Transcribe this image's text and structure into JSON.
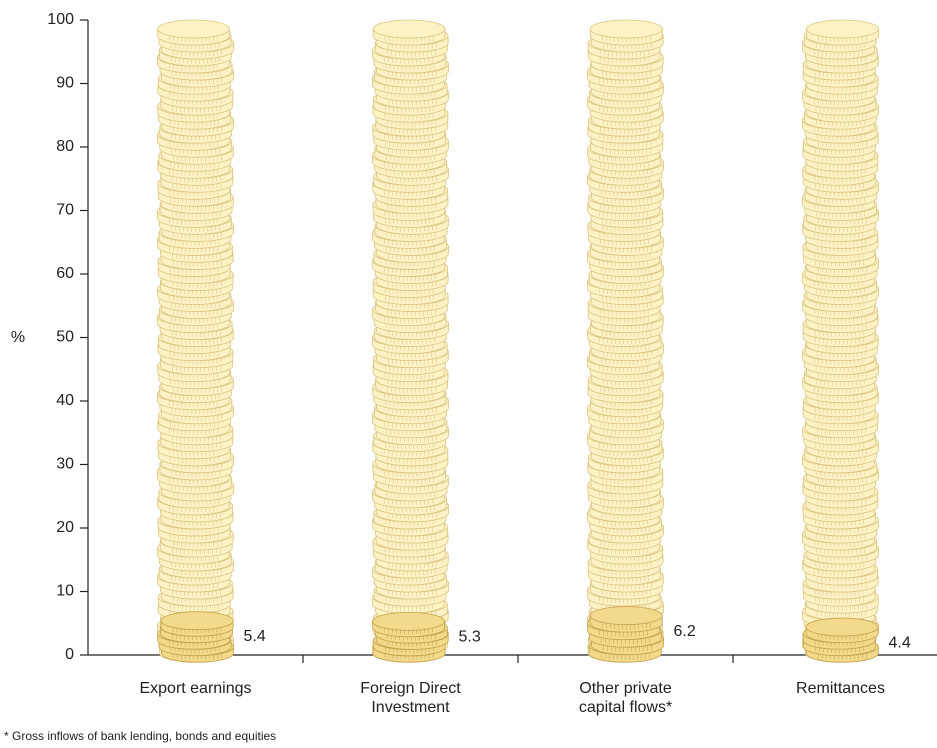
{
  "chart_data": {
    "type": "coin-stack",
    "y_label": "%",
    "categories": [
      "Export earnings",
      "Foreign Direct Investment",
      "Other private capital flows*",
      "Remittances"
    ],
    "values": [
      5.4,
      5.3,
      6.2,
      4.4
    ],
    "color": "#f2d98c",
    "background_color": "#fcf2c6",
    "ylim": [
      0,
      100
    ],
    "yticks": [
      0,
      10,
      20,
      30,
      40,
      50,
      60,
      70,
      80,
      90,
      100
    ],
    "footnote": "* Gross inflows of bank lending, bonds and equities"
  }
}
